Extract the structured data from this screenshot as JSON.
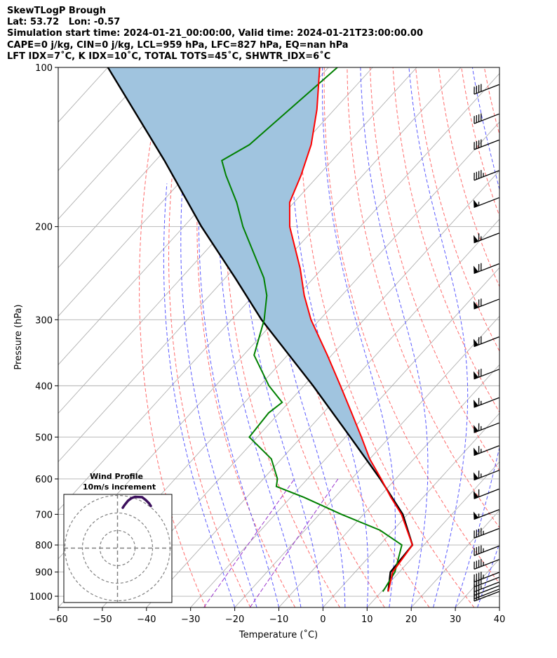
{
  "header": {
    "line1": "SkewTLogP Brough",
    "line2": "Lat: 53.72   Lon: -0.57",
    "line3": "Simulation start time: 2024-01-21_00:00:00, Valid time: 2024-01-21T23:00:00.00",
    "line4": "CAPE=0 j/kg, CIN=0 j/kg, LCL=959 hPa, LFC=827 hPa, EQ=nan hPa",
    "line5": "LFT IDX=7˚C, K IDX=10˚C, TOTAL TOTS=45˚C, SHWTR_IDX=6˚C"
  },
  "chart_data": {
    "type": "line",
    "xlabel": "Temperature (˚C)",
    "ylabel": "Pressure (hPa)",
    "xlim": [
      -60,
      40
    ],
    "ylim": [
      1050,
      100
    ],
    "y_scale": "log",
    "grid": true,
    "skew": true,
    "x_ticks": [
      "−60",
      "−50",
      "−40",
      "−30",
      "−20",
      "−10",
      "0",
      "10",
      "20",
      "30",
      "40"
    ],
    "y_ticks": [
      "1000",
      "900",
      "800",
      "700",
      "600",
      "500",
      "400",
      "300",
      "200",
      "100"
    ],
    "colors": {
      "temperature": "#ff0000",
      "dewpoint": "#008000",
      "parcel": "#000000",
      "shade": "#a0c4df",
      "dry_adiabat": "#ff6b6b",
      "moist_adiabat": "#5a5aff",
      "mixing_ratio": "#9933cc",
      "isotherm": "#b0b0b0",
      "hodograph": "#3b0f5c"
    },
    "temperature": {
      "p": [
        980,
        960,
        900,
        800,
        700,
        650,
        600,
        550,
        500,
        450,
        400,
        350,
        300,
        270,
        240,
        200,
        180,
        160,
        140,
        120,
        100
      ],
      "t": [
        11.5,
        10.8,
        8.5,
        7.4,
        -1.4,
        -7.3,
        -13.3,
        -20,
        -26.4,
        -33.6,
        -41.7,
        -51,
        -62,
        -68.5,
        -75,
        -86,
        -91,
        -94,
        -98,
        -104,
        -112
      ]
    },
    "dewpoint": {
      "p": [
        980,
        960,
        900,
        800,
        750,
        700,
        650,
        620,
        600,
        550,
        500,
        450,
        430,
        400,
        350,
        300,
        270,
        250,
        200,
        180,
        160,
        150,
        140,
        100
      ],
      "td": [
        10.3,
        10,
        9,
        5,
        -3,
        -15,
        -27,
        -35.5,
        -36.8,
        -42.3,
        -51.8,
        -52.4,
        -51.5,
        -57.9,
        -67.6,
        -72.6,
        -77,
        -81.3,
        -96.6,
        -103,
        -111,
        -115,
        -112,
        -108
      ]
    },
    "parcel": {
      "p": [
        980,
        900,
        800,
        700,
        600,
        500,
        400,
        300,
        250,
        200,
        150,
        100
      ],
      "t": [
        11.5,
        8,
        7.4,
        -1.1,
        -13.5,
        -28.9,
        -47.9,
        -73.2,
        -87.8,
        -106,
        -128,
        -160
      ]
    },
    "dry_adiabats_theta_c": [
      -30,
      -20,
      -10,
      0,
      10,
      20,
      30,
      40,
      50,
      60,
      70,
      80,
      90,
      100,
      110,
      120,
      130,
      140
    ],
    "moist_adiabats_t1000_c": [
      -20,
      -15,
      -10,
      -5,
      0,
      5,
      10,
      15,
      20,
      25,
      30,
      35,
      40
    ],
    "mixing_ratio_lines_gkg": [
      0.4,
      1
    ],
    "wind_barbs": {
      "p": [
        1000,
        990,
        975,
        960,
        940,
        920,
        870,
        820,
        760,
        700,
        640,
        590,
        530,
        480,
        430,
        380,
        330,
        280,
        240,
        210,
        180,
        160,
        140,
        125,
        110
      ],
      "speed_kt": [
        25,
        25,
        30,
        35,
        40,
        45,
        45,
        45,
        45,
        55,
        60,
        65,
        65,
        65,
        65,
        70,
        70,
        70,
        70,
        65,
        55,
        45,
        40,
        40,
        40
      ]
    },
    "hodograph": {
      "title": "Wind Profile",
      "subtitle": "10m/s increment",
      "u": [
        19,
        18,
        16,
        14,
        10,
        8,
        6,
        4,
        3
      ],
      "v": [
        24,
        25.5,
        27.5,
        29,
        29.2,
        28.5,
        27,
        24.5,
        23
      ]
    }
  }
}
